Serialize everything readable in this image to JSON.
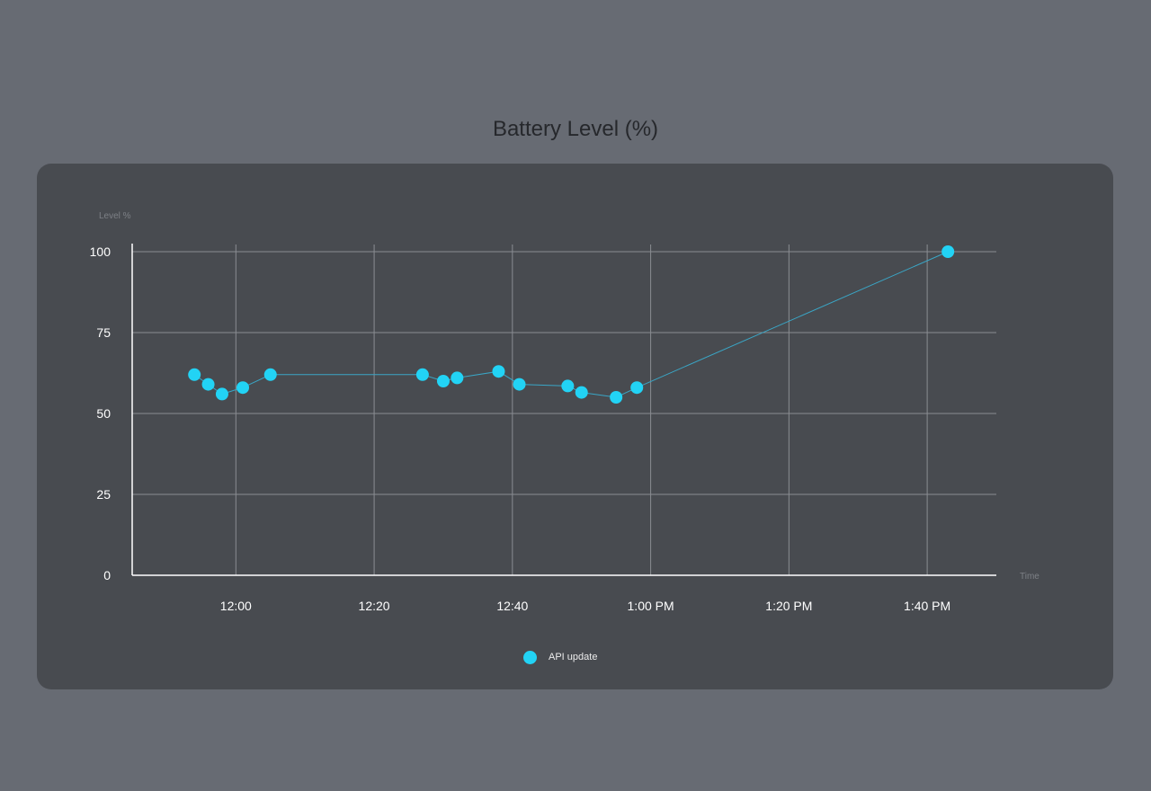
{
  "colors": {
    "background": "#676b73",
    "card": "#484b50",
    "point": "#22d3f5",
    "line": "#3aa6c6",
    "grid": "#8a8d92",
    "axis": "#ffffff"
  },
  "chart_data": {
    "type": "scatter",
    "title": "Battery Level (%)",
    "ylabel": "Level %",
    "xlabel": "Time",
    "ylim": [
      0,
      100
    ],
    "yticks": [
      0,
      25,
      50,
      75,
      100
    ],
    "xlim": [
      "11:45",
      "13:50"
    ],
    "xticks": [
      {
        "t": "12:00",
        "label": "12:00"
      },
      {
        "t": "12:20",
        "label": "12:20"
      },
      {
        "t": "12:40",
        "label": "12:40"
      },
      {
        "t": "13:00",
        "label": "1:00 PM"
      },
      {
        "t": "13:20",
        "label": "1:20 PM"
      },
      {
        "t": "13:40",
        "label": "1:40 PM"
      }
    ],
    "grid": true,
    "legend_position": "bottom",
    "series": [
      {
        "name": "API update",
        "connected": true,
        "points": [
          {
            "x": "11:54",
            "y": 62
          },
          {
            "x": "11:56",
            "y": 59
          },
          {
            "x": "11:58",
            "y": 56
          },
          {
            "x": "12:01",
            "y": 58
          },
          {
            "x": "12:05",
            "y": 62
          },
          {
            "x": "12:27",
            "y": 62
          },
          {
            "x": "12:30",
            "y": 60
          },
          {
            "x": "12:32",
            "y": 61
          },
          {
            "x": "12:38",
            "y": 63
          },
          {
            "x": "12:41",
            "y": 59
          },
          {
            "x": "12:48",
            "y": 58.5
          },
          {
            "x": "12:50",
            "y": 56.5
          },
          {
            "x": "12:55",
            "y": 55
          },
          {
            "x": "12:58",
            "y": 58
          },
          {
            "x": "13:43",
            "y": 100
          }
        ]
      }
    ]
  }
}
